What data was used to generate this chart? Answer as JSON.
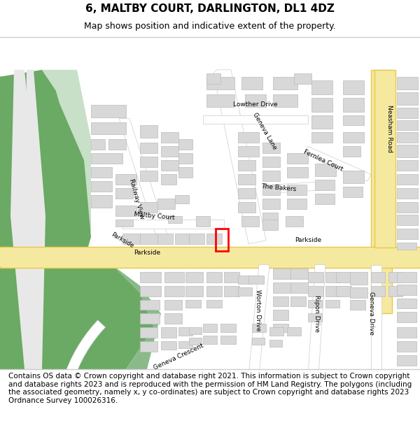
{
  "title": "6, MALTBY COURT, DARLINGTON, DL1 4DZ",
  "subtitle": "Map shows position and indicative extent of the property.",
  "footer": "Contains OS data © Crown copyright and database right 2021. This information is subject to Crown copyright and database rights 2023 and is reproduced with the permission of HM Land Registry. The polygons (including the associated geometry, namely x, y co-ordinates) are subject to Crown copyright and database rights 2023 Ordnance Survey 100026316.",
  "map_bg": "#f2efe9",
  "road_main_color": "#f5e9a0",
  "road_main_edge": "#e8c84a",
  "green_color": "#6aaa64",
  "green_light": "#c8dfc8",
  "building_color": "#d8d8d8",
  "building_edge": "#bbbbbb",
  "highlight_color": "#ff0000",
  "title_fontsize": 11,
  "subtitle_fontsize": 9,
  "footer_fontsize": 7.5,
  "label_fontsize": 6.5
}
